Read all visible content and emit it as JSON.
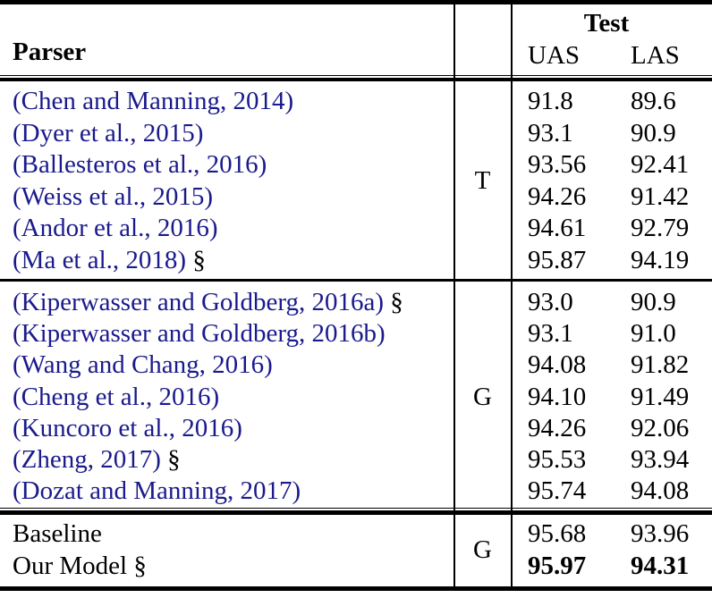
{
  "table": {
    "header": {
      "parser": "Parser",
      "test": "Test",
      "uas": "UAS",
      "las": "LAS"
    },
    "colors": {
      "citation_link": "#1a1a8c",
      "text": "#000000",
      "rule": "#000000",
      "background": "#ffffff"
    },
    "marker_symbol": "§",
    "groups": [
      {
        "type_label": "T",
        "rows": [
          {
            "parser": "(Chen and Manning, 2014)",
            "link": true,
            "marker": false,
            "uas": "91.8",
            "las": "89.6",
            "bold": false
          },
          {
            "parser": "(Dyer et al., 2015)",
            "link": true,
            "marker": false,
            "uas": "93.1",
            "las": "90.9",
            "bold": false
          },
          {
            "parser": "(Ballesteros et al., 2016)",
            "link": true,
            "marker": false,
            "uas": "93.56",
            "las": "92.41",
            "bold": false
          },
          {
            "parser": "(Weiss et al., 2015)",
            "link": true,
            "marker": false,
            "uas": "94.26",
            "las": "91.42",
            "bold": false
          },
          {
            "parser": "(Andor et al., 2016)",
            "link": true,
            "marker": false,
            "uas": "94.61",
            "las": "92.79",
            "bold": false
          },
          {
            "parser": "(Ma et al., 2018)",
            "link": true,
            "marker": true,
            "uas": "95.87",
            "las": "94.19",
            "bold": false
          }
        ]
      },
      {
        "type_label": "G",
        "rows": [
          {
            "parser": "(Kiperwasser and Goldberg, 2016a)",
            "link": true,
            "marker": true,
            "uas": "93.0",
            "las": "90.9",
            "bold": false
          },
          {
            "parser": "(Kiperwasser and Goldberg, 2016b)",
            "link": true,
            "marker": false,
            "uas": "93.1",
            "las": "91.0",
            "bold": false
          },
          {
            "parser": "(Wang and Chang, 2016)",
            "link": true,
            "marker": false,
            "uas": "94.08",
            "las": "91.82",
            "bold": false
          },
          {
            "parser": "(Cheng et al., 2016)",
            "link": true,
            "marker": false,
            "uas": "94.10",
            "las": "91.49",
            "bold": false
          },
          {
            "parser": "(Kuncoro et al., 2016)",
            "link": true,
            "marker": false,
            "uas": "94.26",
            "las": "92.06",
            "bold": false
          },
          {
            "parser": "(Zheng, 2017)",
            "link": true,
            "marker": true,
            "uas": "95.53",
            "las": "93.94",
            "bold": false
          },
          {
            "parser": "(Dozat and Manning, 2017)",
            "link": true,
            "marker": false,
            "uas": "95.74",
            "las": "94.08",
            "bold": false
          }
        ]
      },
      {
        "type_label": "G",
        "rows": [
          {
            "parser": "Baseline",
            "link": false,
            "marker": false,
            "uas": "95.68",
            "las": "93.96",
            "bold": false
          },
          {
            "parser": "Our Model",
            "link": false,
            "marker": true,
            "uas": "95.97",
            "las": "94.31",
            "bold": true
          }
        ]
      }
    ]
  }
}
